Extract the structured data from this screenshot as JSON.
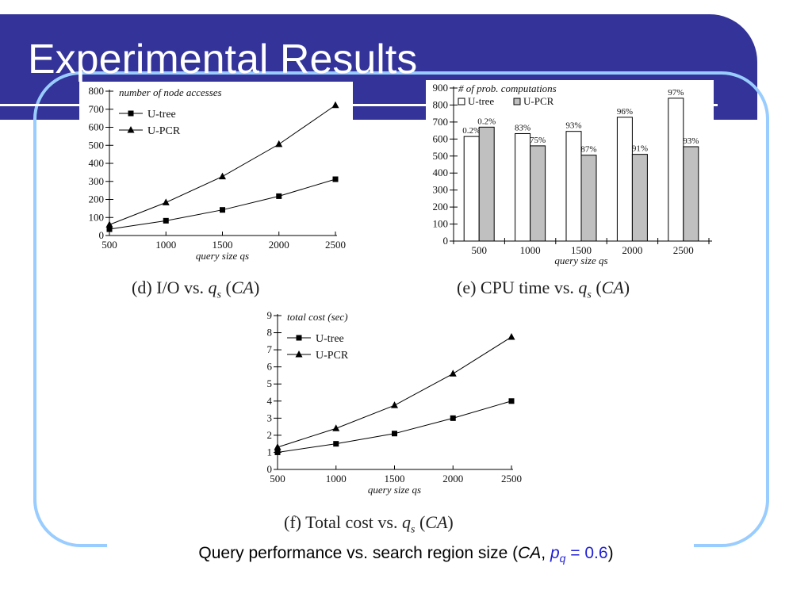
{
  "slide": {
    "title": "Experimental Results",
    "caption_pre": "Query performance vs. search region size (",
    "caption_ca": "CA",
    "caption_comma": ", ",
    "caption_p": "p",
    "caption_q": "q",
    "caption_eq": " = 0.6",
    "caption_post": ")"
  },
  "subcaptions": {
    "d": {
      "pre": "(d) I/O vs. ",
      "q": "q",
      "s": "s",
      "mid": " (",
      "ca": "CA",
      "post": ")"
    },
    "e": {
      "pre": "(e) CPU time vs. ",
      "q": "q",
      "s": "s",
      "mid": " (",
      "ca": "CA",
      "post": ")"
    },
    "f": {
      "pre": "(f) Total cost vs. ",
      "q": "q",
      "s": "s",
      "mid": " (",
      "ca": "CA",
      "post": ")"
    }
  },
  "chart_data": [
    {
      "id": "d",
      "type": "line",
      "title": "number of node accesses",
      "xlabel": "query size qs",
      "x": [
        500,
        1000,
        1500,
        2000,
        2500
      ],
      "ylim": [
        0,
        800
      ],
      "yticks": [
        0,
        100,
        200,
        300,
        400,
        500,
        600,
        700,
        800
      ],
      "series": [
        {
          "name": "U-tree",
          "marker": "square",
          "values": [
            35,
            82,
            142,
            218,
            312
          ]
        },
        {
          "name": "U-PCR",
          "marker": "triangle",
          "values": [
            60,
            183,
            327,
            506,
            722
          ]
        }
      ]
    },
    {
      "id": "e",
      "type": "bar",
      "title": "# of prob. computations",
      "xlabel": "query size qs",
      "categories": [
        "500",
        "1000",
        "1500",
        "2000",
        "2500"
      ],
      "ylim": [
        0,
        900
      ],
      "yticks": [
        0,
        100,
        200,
        300,
        400,
        500,
        600,
        700,
        800,
        900
      ],
      "series": [
        {
          "name": "U-tree",
          "color": "#ffffff",
          "values": [
            615,
            632,
            645,
            728,
            840
          ],
          "labels": [
            "0.2%",
            "83%",
            "93%",
            "96%",
            "97%"
          ]
        },
        {
          "name": "U-PCR",
          "color": "#c0c0c0",
          "values": [
            670,
            560,
            505,
            510,
            555
          ],
          "labels": [
            "0.2%",
            "75%",
            "87%",
            "91%",
            "93%"
          ]
        }
      ]
    },
    {
      "id": "f",
      "type": "line",
      "title": "total cost (sec)",
      "xlabel": "query size qs",
      "x": [
        500,
        1000,
        1500,
        2000,
        2500
      ],
      "ylim": [
        0,
        9
      ],
      "yticks": [
        0,
        1,
        2,
        3,
        4,
        5,
        6,
        7,
        8,
        9
      ],
      "series": [
        {
          "name": "U-tree",
          "marker": "square",
          "values": [
            1.0,
            1.5,
            2.1,
            3.0,
            4.0
          ]
        },
        {
          "name": "U-PCR",
          "marker": "triangle",
          "values": [
            1.3,
            2.4,
            3.75,
            5.6,
            7.75
          ]
        }
      ]
    }
  ]
}
